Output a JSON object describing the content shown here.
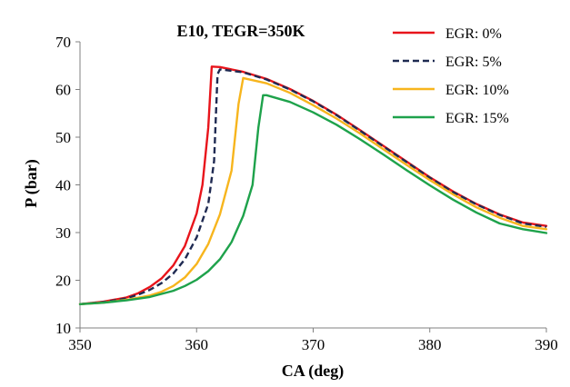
{
  "chart_data": {
    "type": "line",
    "title": "E10, TEGR=350K",
    "xlabel": "CA (deg)",
    "ylabel": "P (bar)",
    "xlim": [
      350,
      390
    ],
    "ylim": [
      10,
      70
    ],
    "x_ticks": [
      350,
      360,
      370,
      380,
      390
    ],
    "y_ticks": [
      10,
      20,
      30,
      40,
      50,
      60,
      70
    ],
    "grid": false,
    "legend_position": "top-right",
    "series": [
      {
        "name": "EGR: 0%",
        "color": "#e8141b",
        "dash": "solid",
        "points": [
          [
            350,
            15
          ],
          [
            352,
            15.5
          ],
          [
            354,
            16.4
          ],
          [
            355,
            17.3
          ],
          [
            356,
            18.6
          ],
          [
            357,
            20.4
          ],
          [
            358,
            23.1
          ],
          [
            359,
            27.2
          ],
          [
            360,
            34
          ],
          [
            360.5,
            40
          ],
          [
            361,
            52
          ],
          [
            361.3,
            64.8
          ],
          [
            362,
            64.7
          ],
          [
            364,
            63.7
          ],
          [
            366,
            62.2
          ],
          [
            368,
            60.1
          ],
          [
            370,
            57.6
          ],
          [
            372,
            54.7
          ],
          [
            374,
            51.5
          ],
          [
            376,
            48.2
          ],
          [
            378,
            44.9
          ],
          [
            380,
            41.6
          ],
          [
            382,
            38.6
          ],
          [
            384,
            36
          ],
          [
            386,
            33.8
          ],
          [
            388,
            32.1
          ],
          [
            390,
            31.4
          ]
        ]
      },
      {
        "name": "EGR: 5%",
        "color": "#1f2a52",
        "dash": "dashed",
        "points": [
          [
            350,
            15
          ],
          [
            352,
            15.4
          ],
          [
            354,
            16.2
          ],
          [
            355,
            17
          ],
          [
            356,
            18
          ],
          [
            357,
            19.4
          ],
          [
            358,
            21.4
          ],
          [
            359,
            24.4
          ],
          [
            360,
            29
          ],
          [
            361,
            36
          ],
          [
            361.5,
            45
          ],
          [
            361.8,
            63.2
          ],
          [
            362,
            64.2
          ],
          [
            364,
            63.6
          ],
          [
            366,
            62.1
          ],
          [
            368,
            60
          ],
          [
            370,
            57.5
          ],
          [
            372,
            54.6
          ],
          [
            374,
            51.4
          ],
          [
            376,
            48.1
          ],
          [
            378,
            44.8
          ],
          [
            380,
            41.5
          ],
          [
            382,
            38.5
          ],
          [
            384,
            35.9
          ],
          [
            386,
            33.7
          ],
          [
            388,
            31.9
          ],
          [
            390,
            31.2
          ]
        ]
      },
      {
        "name": "EGR: 10%",
        "color": "#f7b51d",
        "dash": "solid",
        "points": [
          [
            350,
            15
          ],
          [
            352,
            15.3
          ],
          [
            354,
            15.9
          ],
          [
            356,
            16.8
          ],
          [
            357,
            17.6
          ],
          [
            358,
            18.8
          ],
          [
            359,
            20.6
          ],
          [
            360,
            23.4
          ],
          [
            361,
            27.6
          ],
          [
            362,
            33.8
          ],
          [
            363,
            43
          ],
          [
            363.6,
            57
          ],
          [
            364,
            62.4
          ],
          [
            366,
            61.3
          ],
          [
            368,
            59.3
          ],
          [
            370,
            56.7
          ],
          [
            372,
            53.9
          ],
          [
            374,
            50.8
          ],
          [
            376,
            47.5
          ],
          [
            378,
            44.2
          ],
          [
            380,
            41
          ],
          [
            382,
            38
          ],
          [
            384,
            35.3
          ],
          [
            386,
            33.1
          ],
          [
            388,
            31.4
          ],
          [
            390,
            30.7
          ]
        ]
      },
      {
        "name": "EGR: 15%",
        "color": "#1ea24b",
        "dash": "solid",
        "points": [
          [
            350,
            15
          ],
          [
            352,
            15.3
          ],
          [
            354,
            15.8
          ],
          [
            356,
            16.5
          ],
          [
            358,
            17.8
          ],
          [
            359,
            18.8
          ],
          [
            360,
            20.1
          ],
          [
            361,
            21.9
          ],
          [
            362,
            24.4
          ],
          [
            363,
            28
          ],
          [
            364,
            33.5
          ],
          [
            364.8,
            40
          ],
          [
            365.3,
            52
          ],
          [
            365.7,
            58.8
          ],
          [
            366,
            58.8
          ],
          [
            368,
            57.4
          ],
          [
            370,
            55.2
          ],
          [
            372,
            52.6
          ],
          [
            374,
            49.6
          ],
          [
            376,
            46.4
          ],
          [
            378,
            43.1
          ],
          [
            380,
            39.9
          ],
          [
            382,
            36.9
          ],
          [
            384,
            34.2
          ],
          [
            386,
            31.9
          ],
          [
            388,
            30.7
          ],
          [
            390,
            29.9
          ]
        ]
      }
    ]
  }
}
